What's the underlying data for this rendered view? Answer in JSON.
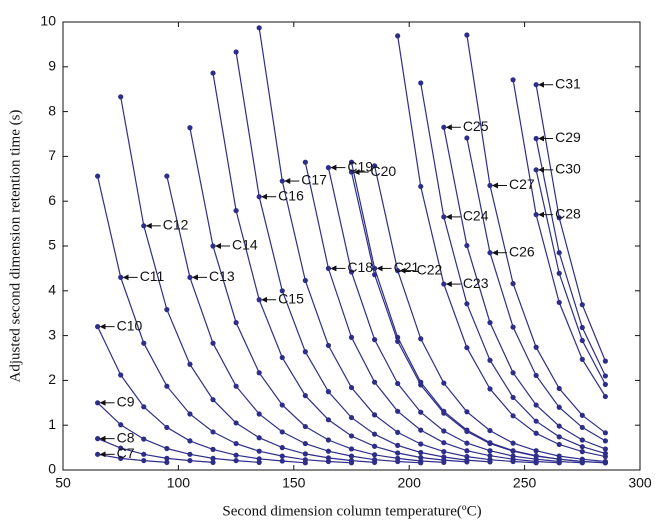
{
  "chart_data": {
    "type": "line",
    "x_label": "Second dimension column temperature(ºC)",
    "y_label": "Adjusted second dimension retention time (s)",
    "color": "#2e2e8a",
    "x": [
      65,
      75,
      85,
      95,
      105,
      115,
      125,
      135,
      145,
      155,
      165,
      175,
      185,
      195,
      205,
      215,
      225,
      235,
      245,
      255,
      265,
      275,
      285
    ],
    "xlim": [
      50,
      300
    ],
    "xticks": [
      50,
      100,
      150,
      200,
      250,
      300
    ],
    "ylim": [
      0,
      10
    ],
    "yticks": [
      0,
      1,
      2,
      3,
      4,
      5,
      6,
      7,
      8,
      9,
      10
    ],
    "series": [
      {
        "name": "C7",
        "values": [
          0.35,
          0.26,
          0.21,
          0.17,
          null,
          null,
          null,
          null,
          null,
          null,
          null,
          null,
          null,
          null,
          null,
          null,
          null,
          null,
          null,
          null,
          null,
          null,
          null
        ]
      },
      {
        "name": "C8",
        "values": [
          0.7,
          0.49,
          0.35,
          0.26,
          0.21,
          0.17,
          null,
          null,
          null,
          null,
          null,
          null,
          null,
          null,
          null,
          null,
          null,
          null,
          null,
          null,
          null,
          null,
          null
        ]
      },
      {
        "name": "C9",
        "values": [
          1.5,
          1.01,
          0.69,
          0.48,
          0.35,
          0.26,
          0.21,
          0.17,
          null,
          null,
          null,
          null,
          null,
          null,
          null,
          null,
          null,
          null,
          null,
          null,
          null,
          null,
          null
        ]
      },
      {
        "name": "C10",
        "values": [
          3.2,
          2.12,
          1.41,
          0.95,
          0.65,
          0.46,
          0.33,
          0.25,
          0.2,
          0.16,
          null,
          null,
          null,
          null,
          null,
          null,
          null,
          null,
          null,
          null,
          null,
          null,
          null
        ]
      },
      {
        "name": "C11",
        "values": [
          6.56,
          4.3,
          2.83,
          1.87,
          1.25,
          0.85,
          0.59,
          0.42,
          0.31,
          0.23,
          0.19,
          0.16,
          null,
          null,
          null,
          null,
          null,
          null,
          null,
          null,
          null,
          null,
          null
        ]
      },
      {
        "name": "C12",
        "values": [
          null,
          8.33,
          5.45,
          3.58,
          2.36,
          1.57,
          1.05,
          0.72,
          0.5,
          0.36,
          0.27,
          0.21,
          0.17,
          null,
          null,
          null,
          null,
          null,
          null,
          null,
          null,
          null,
          null
        ]
      },
      {
        "name": "C13",
        "values": [
          null,
          null,
          null,
          6.56,
          4.3,
          2.83,
          1.87,
          1.25,
          0.85,
          0.59,
          0.42,
          0.31,
          0.23,
          0.19,
          0.16,
          null,
          null,
          null,
          null,
          null,
          null,
          null,
          null
        ]
      },
      {
        "name": "C14",
        "values": [
          null,
          null,
          null,
          null,
          7.64,
          5.0,
          3.29,
          2.17,
          1.45,
          0.97,
          0.67,
          0.47,
          0.34,
          0.26,
          0.2,
          0.17,
          null,
          null,
          null,
          null,
          null,
          null,
          null
        ]
      },
      {
        "name": "C15",
        "values": [
          null,
          null,
          null,
          null,
          null,
          8.86,
          5.79,
          3.8,
          2.51,
          1.66,
          1.12,
          0.76,
          0.53,
          0.38,
          0.28,
          0.22,
          0.18,
          null,
          null,
          null,
          null,
          null,
          null
        ]
      },
      {
        "name": "C16",
        "values": [
          null,
          null,
          null,
          null,
          null,
          null,
          9.33,
          6.1,
          4.0,
          2.64,
          1.75,
          1.17,
          0.8,
          0.55,
          0.39,
          0.29,
          0.22,
          0.18,
          null,
          null,
          null,
          null,
          null
        ]
      },
      {
        "name": "C17",
        "values": [
          null,
          null,
          null,
          null,
          null,
          null,
          null,
          9.87,
          6.45,
          4.23,
          2.78,
          1.84,
          1.23,
          0.84,
          0.58,
          0.41,
          0.3,
          0.23,
          0.19,
          0.16,
          null,
          null,
          null
        ]
      },
      {
        "name": "C18",
        "values": [
          null,
          null,
          null,
          null,
          null,
          null,
          null,
          null,
          null,
          6.87,
          4.5,
          2.96,
          1.96,
          1.31,
          0.89,
          0.61,
          0.43,
          0.32,
          0.24,
          0.19,
          0.16,
          null,
          null
        ]
      },
      {
        "name": "C19",
        "values": [
          null,
          null,
          null,
          null,
          null,
          null,
          null,
          null,
          null,
          null,
          6.75,
          4.42,
          2.91,
          1.93,
          1.29,
          0.87,
          0.6,
          0.43,
          0.31,
          0.24,
          0.19,
          0.16,
          null
        ]
      },
      {
        "name": "C20",
        "values": [
          null,
          null,
          null,
          null,
          null,
          null,
          null,
          null,
          null,
          null,
          null,
          6.65,
          4.36,
          2.87,
          1.9,
          1.27,
          0.86,
          0.59,
          0.42,
          0.31,
          0.24,
          0.19,
          0.16
        ]
      },
      {
        "name": "C21",
        "values": [
          null,
          null,
          null,
          null,
          null,
          null,
          null,
          null,
          null,
          null,
          null,
          6.87,
          4.5,
          2.96,
          1.96,
          1.31,
          0.89,
          0.61,
          0.43,
          0.32,
          0.24,
          0.19,
          0.16
        ]
      },
      {
        "name": "C22",
        "values": [
          null,
          null,
          null,
          null,
          null,
          null,
          null,
          null,
          null,
          null,
          null,
          null,
          6.79,
          4.45,
          2.93,
          1.94,
          1.3,
          0.88,
          0.6,
          0.43,
          0.31,
          0.24,
          0.19
        ]
      },
      {
        "name": "C23",
        "values": [
          null,
          null,
          null,
          null,
          null,
          null,
          null,
          null,
          null,
          null,
          null,
          null,
          null,
          9.69,
          6.33,
          4.15,
          2.73,
          1.81,
          1.21,
          0.82,
          0.57,
          0.41,
          0.3
        ]
      },
      {
        "name": "C24",
        "values": [
          null,
          null,
          null,
          null,
          null,
          null,
          null,
          null,
          null,
          null,
          null,
          null,
          null,
          null,
          8.64,
          5.65,
          3.71,
          2.45,
          1.62,
          1.09,
          0.74,
          0.52,
          0.37
        ]
      },
      {
        "name": "C25",
        "values": [
          null,
          null,
          null,
          null,
          null,
          null,
          null,
          null,
          null,
          null,
          null,
          null,
          null,
          null,
          null,
          7.65,
          5.01,
          3.29,
          2.17,
          1.45,
          0.98,
          0.67,
          0.47
        ]
      },
      {
        "name": "C26",
        "values": [
          null,
          null,
          null,
          null,
          null,
          null,
          null,
          null,
          null,
          null,
          null,
          null,
          null,
          null,
          null,
          null,
          7.41,
          4.85,
          3.19,
          2.11,
          1.4,
          0.95,
          0.65
        ]
      },
      {
        "name": "C27",
        "values": [
          null,
          null,
          null,
          null,
          null,
          null,
          null,
          null,
          null,
          null,
          null,
          null,
          null,
          null,
          null,
          null,
          9.71,
          6.35,
          4.16,
          2.74,
          1.82,
          1.22,
          0.83
        ]
      },
      {
        "name": "C28",
        "values": [
          null,
          null,
          null,
          null,
          null,
          null,
          null,
          null,
          null,
          null,
          null,
          null,
          null,
          null,
          null,
          null,
          null,
          null,
          8.71,
          5.7,
          3.74,
          2.47,
          1.64
        ]
      },
      {
        "name": "C29",
        "values": [
          null,
          null,
          null,
          null,
          null,
          null,
          null,
          null,
          null,
          null,
          null,
          null,
          null,
          null,
          null,
          null,
          null,
          null,
          null,
          7.4,
          4.85,
          3.18,
          2.1
        ]
      },
      {
        "name": "C30",
        "values": [
          null,
          null,
          null,
          null,
          null,
          null,
          null,
          null,
          null,
          null,
          null,
          null,
          null,
          null,
          null,
          null,
          null,
          null,
          null,
          6.7,
          4.39,
          2.89,
          1.91
        ]
      },
      {
        "name": "C31",
        "values": [
          null,
          null,
          null,
          null,
          null,
          null,
          null,
          null,
          null,
          null,
          null,
          null,
          null,
          null,
          null,
          null,
          null,
          null,
          null,
          8.6,
          5.63,
          3.69,
          2.43
        ]
      }
    ]
  }
}
